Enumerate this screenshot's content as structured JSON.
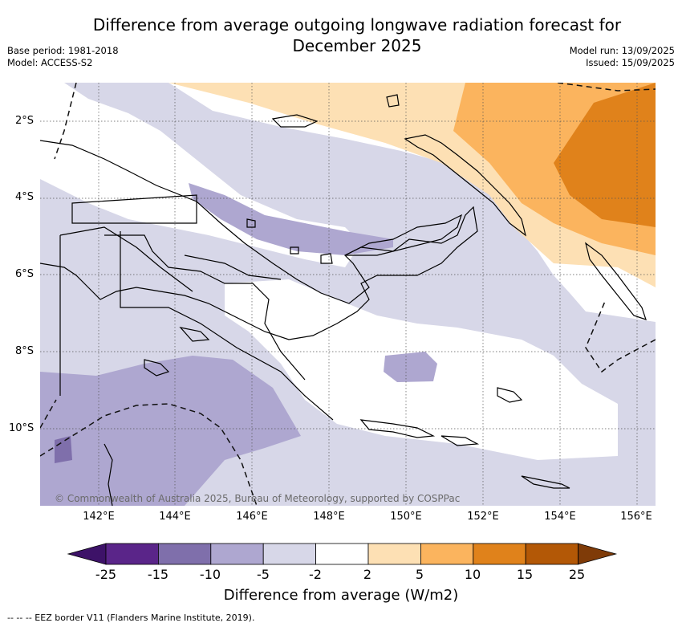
{
  "title_line1": "Difference from average outgoing longwave radiation forecast for",
  "title_line2": "December 2025",
  "base_period": "Base period: 1981-2018",
  "model": "Model: ACCESS-S2",
  "model_run": "Model run: 13/09/2025",
  "issued": "Issued: 15/09/2025",
  "map": {
    "lat_labels": [
      "2°S",
      "4°S",
      "6°S",
      "8°S",
      "10°S"
    ],
    "lon_labels": [
      "142°E",
      "144°E",
      "146°E",
      "148°E",
      "150°E",
      "152°E",
      "154°E",
      "156°E"
    ],
    "copyright": "© Commonwealth of Australia 2025, Bureau of Meteorology, supported by COSPPac"
  },
  "colorbar": {
    "label": "Difference from average (W/m2)",
    "ticks": [
      "-25",
      "-15",
      "-10",
      "-5",
      "-2",
      "2",
      "5",
      "10",
      "15",
      "25"
    ],
    "colors": [
      "#3d1268",
      "#5a2589",
      "#7f6fab",
      "#aea7d0",
      "#d7d7e8",
      "#ffffff",
      "#fde0b4",
      "#fbb45e",
      "#e0821b",
      "#b35806",
      "#7f3b08"
    ]
  },
  "footnote": "--  --  -- EEZ border V11 (Flanders Marine Institute, 2019)."
}
